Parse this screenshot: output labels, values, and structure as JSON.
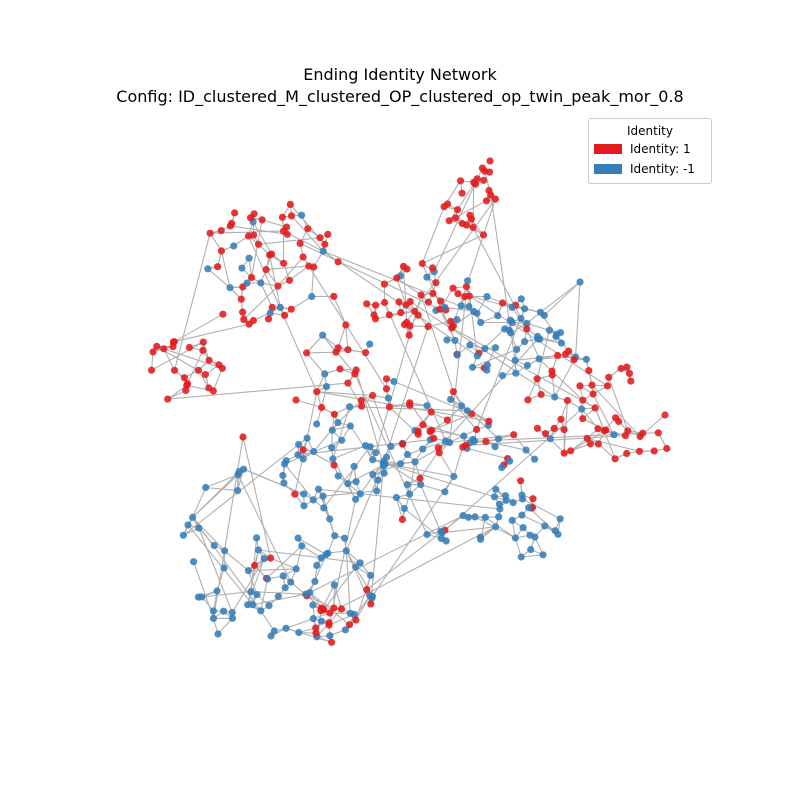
{
  "title": {
    "line1": "Ending Identity Network",
    "line2": "Config: ID_clustered_M_clustered_OP_clustered_op_twin_peak_mor_0.8"
  },
  "legend": {
    "title": "Identity",
    "items": [
      {
        "label": "Identity: 1",
        "color": "#e41a1c"
      },
      {
        "label": "Identity: -1",
        "color": "#377eb8"
      }
    ]
  },
  "colors": {
    "edge": "#b0b0b0",
    "identity_1": "#e41a1c",
    "identity_neg1": "#377eb8"
  }
}
